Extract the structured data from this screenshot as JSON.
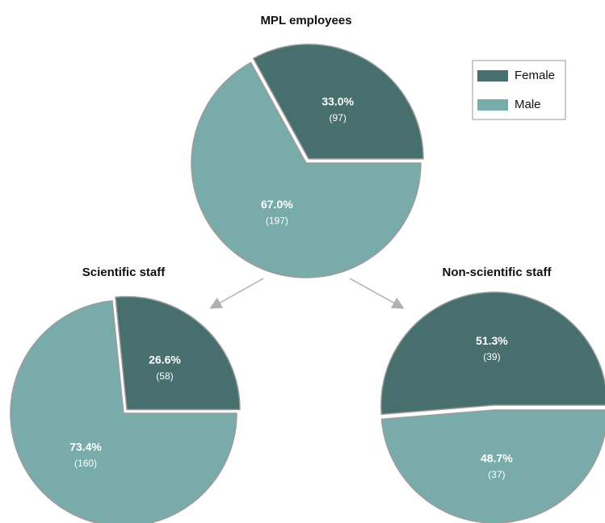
{
  "chart_data": [
    {
      "type": "pie",
      "title": "MPL employees",
      "categories": [
        "Female",
        "Male"
      ],
      "values": [
        33.0,
        67.0
      ],
      "value_labels": [
        "33.0%",
        "67.0%"
      ],
      "counts": [
        {
          "value": 97,
          "label": "(97)"
        },
        {
          "value": 197,
          "label": "(197)"
        }
      ],
      "colors": [
        "#476f6e",
        "#7aabab"
      ],
      "legend": "upper right"
    },
    {
      "type": "pie",
      "title": "Scientific staff",
      "categories": [
        "Female",
        "Male"
      ],
      "values": [
        26.6,
        73.4
      ],
      "value_labels": [
        "26.6%",
        "73.4%"
      ],
      "counts": [
        {
          "value": 58,
          "label": "(58)"
        },
        {
          "value": 160,
          "label": "(160)"
        }
      ],
      "colors": [
        "#476f6e",
        "#7aabab"
      ]
    },
    {
      "type": "pie",
      "title": "Non-scientific staff",
      "categories": [
        "Female",
        "Male"
      ],
      "values": [
        51.3,
        48.7
      ],
      "value_labels": [
        "51.3%",
        "48.7%"
      ],
      "counts": [
        {
          "value": 39,
          "label": "(39)"
        },
        {
          "value": 37,
          "label": "(37)"
        }
      ],
      "colors": [
        "#476f6e",
        "#7aabab"
      ]
    }
  ]
}
